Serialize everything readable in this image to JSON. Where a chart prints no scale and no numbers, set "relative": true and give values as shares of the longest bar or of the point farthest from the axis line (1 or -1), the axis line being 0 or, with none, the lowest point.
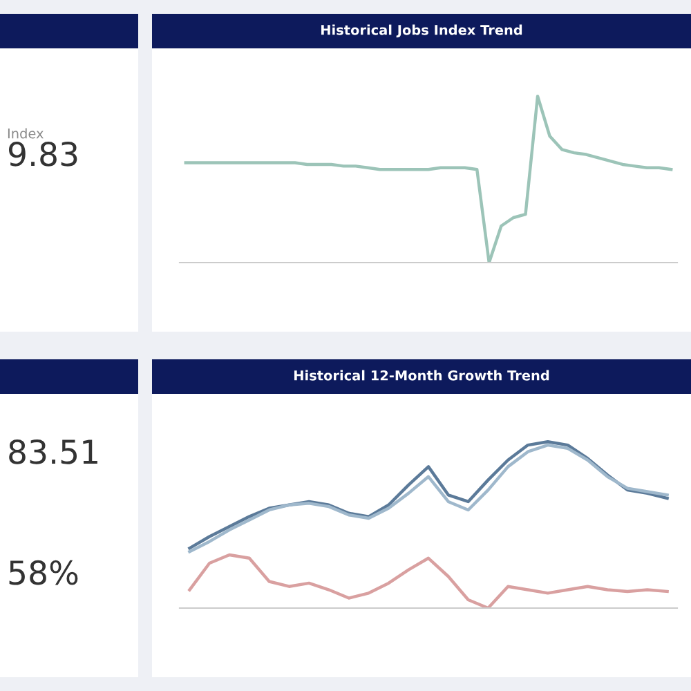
{
  "chart_data": [
    {
      "type": "other",
      "annotations": [
        "Index",
        "9.83"
      ]
    },
    {
      "type": "line",
      "title": "Historical Jobs Index Trend",
      "relative": true,
      "grid": false,
      "legend": false,
      "marker": "none",
      "line_style": "solid",
      "categories": [
        null,
        null,
        null,
        null,
        null,
        null,
        null,
        null,
        null,
        null,
        null,
        null,
        null,
        null,
        null,
        null,
        null,
        null,
        null,
        null,
        null,
        null,
        null,
        null,
        null,
        null,
        null,
        null,
        null,
        null,
        null,
        null,
        null,
        null,
        null,
        null,
        null,
        null,
        null,
        null,
        null
      ],
      "series": [
        {
          "color": "#9cc4b8",
          "values": [
            0.6,
            0.6,
            0.6,
            0.6,
            0.6,
            0.6,
            0.6,
            0.6,
            0.6,
            0.6,
            0.59,
            0.59,
            0.59,
            0.58,
            0.58,
            0.57,
            0.56,
            0.56,
            0.56,
            0.56,
            0.56,
            0.57,
            0.57,
            0.57,
            0.56,
            0.0,
            0.22,
            0.27,
            0.29,
            1.0,
            0.76,
            0.68,
            0.66,
            0.65,
            0.63,
            0.61,
            0.59,
            0.58,
            0.57,
            0.57,
            0.56
          ]
        }
      ]
    },
    {
      "type": "other",
      "annotations": [
        "83.51",
        "58%"
      ]
    },
    {
      "type": "line",
      "title": "Historical 12-Month Growth Trend",
      "relative": true,
      "grid": false,
      "legend": false,
      "marker": "none",
      "line_style": "solid",
      "categories": [
        null,
        null,
        null,
        null,
        null,
        null,
        null,
        null,
        null,
        null,
        null,
        null,
        null,
        null,
        null,
        null,
        null,
        null,
        null,
        null,
        null,
        null,
        null,
        null,
        null
      ],
      "series": [
        {
          "color": "#5b7a99",
          "values": [
            0.36,
            0.43,
            0.49,
            0.55,
            0.6,
            0.62,
            0.64,
            0.62,
            0.57,
            0.55,
            0.62,
            0.74,
            0.85,
            0.68,
            0.64,
            0.77,
            0.89,
            0.98,
            1.0,
            0.98,
            0.9,
            0.8,
            0.71,
            0.69,
            0.66
          ]
        },
        {
          "color": "#9fb8cc",
          "values": [
            0.34,
            0.4,
            0.47,
            0.53,
            0.59,
            0.62,
            0.63,
            0.61,
            0.56,
            0.54,
            0.6,
            0.69,
            0.79,
            0.64,
            0.59,
            0.71,
            0.85,
            0.94,
            0.98,
            0.96,
            0.89,
            0.79,
            0.72,
            0.7,
            0.68
          ]
        },
        {
          "color": "#d9a0a0",
          "values": [
            0.11,
            0.27,
            0.32,
            0.3,
            0.16,
            0.13,
            0.15,
            0.11,
            0.06,
            0.09,
            0.15,
            0.23,
            0.3,
            0.19,
            0.05,
            0.0,
            0.13,
            0.11,
            0.09,
            0.11,
            0.13,
            0.11,
            0.1,
            0.11,
            0.1
          ]
        }
      ]
    }
  ]
}
